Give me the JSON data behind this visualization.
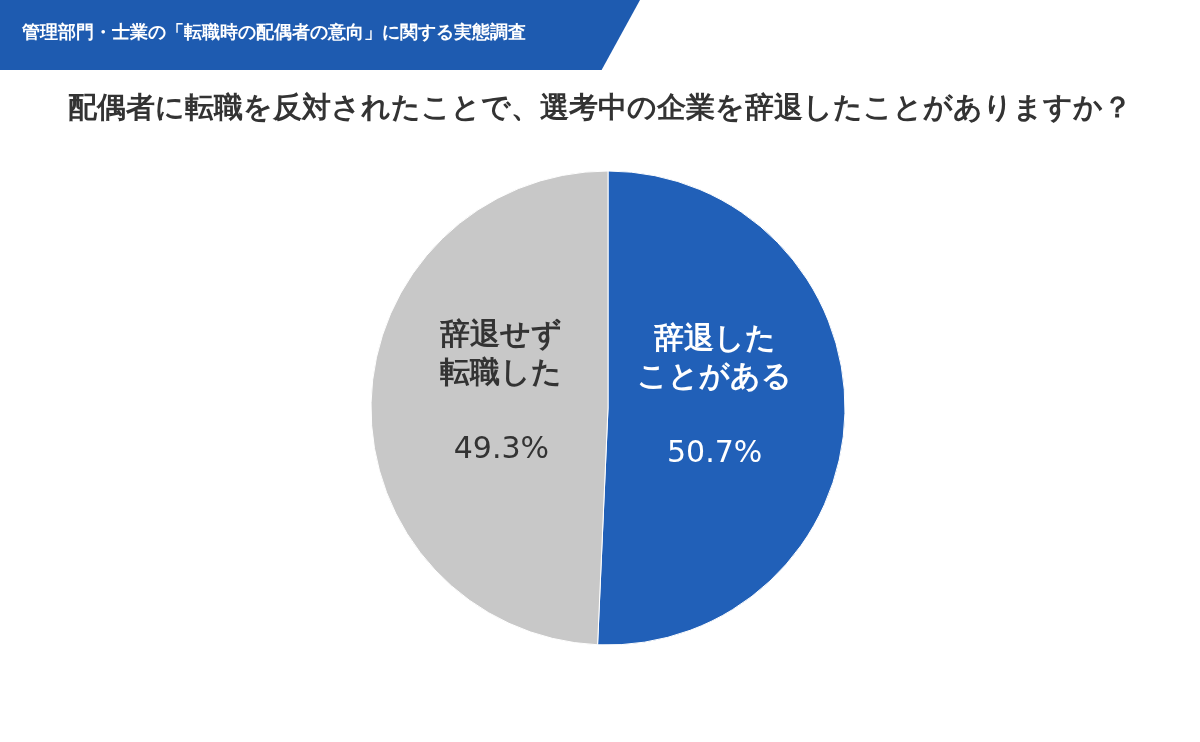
{
  "chart_data": {
    "type": "pie",
    "subtitle": "管理部門・士業の「転職時の配偶者の意向」に関する実態調査",
    "title": "配偶者に転職を反対されたことで、選考中の企業を辞退したことがありますか？",
    "categories": [
      "辞退したことがある",
      "辞退せず転職した"
    ],
    "values": [
      50.7,
      49.3
    ],
    "colors": [
      "#2160b8",
      "#c8c8c8"
    ],
    "value_labels": [
      "50.7%",
      "49.3%"
    ],
    "legend": false
  }
}
